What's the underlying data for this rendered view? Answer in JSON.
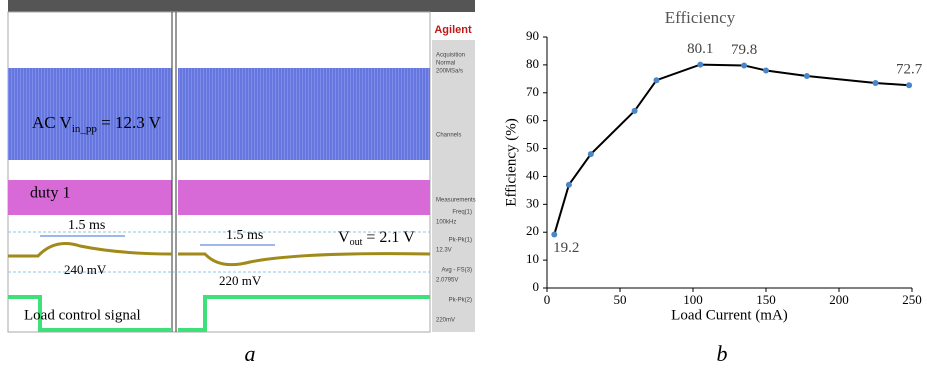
{
  "scope": {
    "ac_label": {
      "main": "AC V",
      "sub": "in_pp",
      "rest": " = 12.3 V"
    },
    "duty_label": "duty 1",
    "left_time": "1.5 ms",
    "left_ripple": "240 mV",
    "right_time": "1.5 ms",
    "right_ripple": "220 mV",
    "vout_label": {
      "main": "V",
      "sub": "out",
      "rest": " = 2.1 V"
    },
    "load_label": "Load control signal",
    "brand": "Agilent",
    "side": [
      "Acquisition",
      "Normal",
      "200MSa/s",
      "Channels",
      "Measurements",
      "Freq(1)",
      "100kHz",
      "Pk-Pk(1)",
      "12.3V",
      "Avg - FS(3)",
      "2.0795V",
      "Pk-Pk(2)",
      "220mV"
    ],
    "panel": "a"
  },
  "chart_data": {
    "type": "line",
    "title": "Efficiency",
    "panel": "b",
    "x_label": "Load Current (mA)",
    "y_label": "Efficiency (%)",
    "x": [
      5,
      15,
      30,
      60,
      75,
      105,
      135,
      150,
      178,
      225,
      248
    ],
    "values": [
      19.2,
      37,
      48,
      63.5,
      74.5,
      80.1,
      79.8,
      78,
      76,
      73.5,
      72.7
    ],
    "value_labels": [
      "19.2",
      null,
      null,
      null,
      null,
      "80.1",
      "79.8",
      null,
      null,
      null,
      "72.7"
    ],
    "color": "#000000",
    "marker_color": "#4a86c8",
    "xlim": [
      0,
      250
    ],
    "xticks": [
      0,
      50,
      100,
      150,
      200,
      250
    ],
    "ylim": [
      0,
      90
    ],
    "yticks": [
      0,
      10,
      20,
      30,
      40,
      50,
      60,
      70,
      80,
      90
    ],
    "grid": false
  }
}
